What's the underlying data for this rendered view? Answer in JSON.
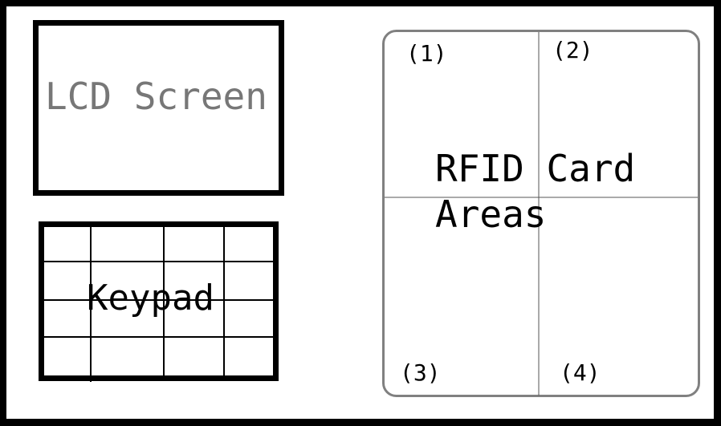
{
  "lcd": {
    "label": "LCD Screen"
  },
  "keypad": {
    "label": "Keypad"
  },
  "rfid": {
    "label_line1": "RFID Card",
    "label_line2": "Areas",
    "quadrants": [
      "(1)",
      "(2)",
      "(3)",
      "(4)"
    ]
  },
  "colors": {
    "background": "#000000",
    "panel": "#ffffff",
    "lcd_text": "#777777",
    "rfid_border": "#808080"
  }
}
